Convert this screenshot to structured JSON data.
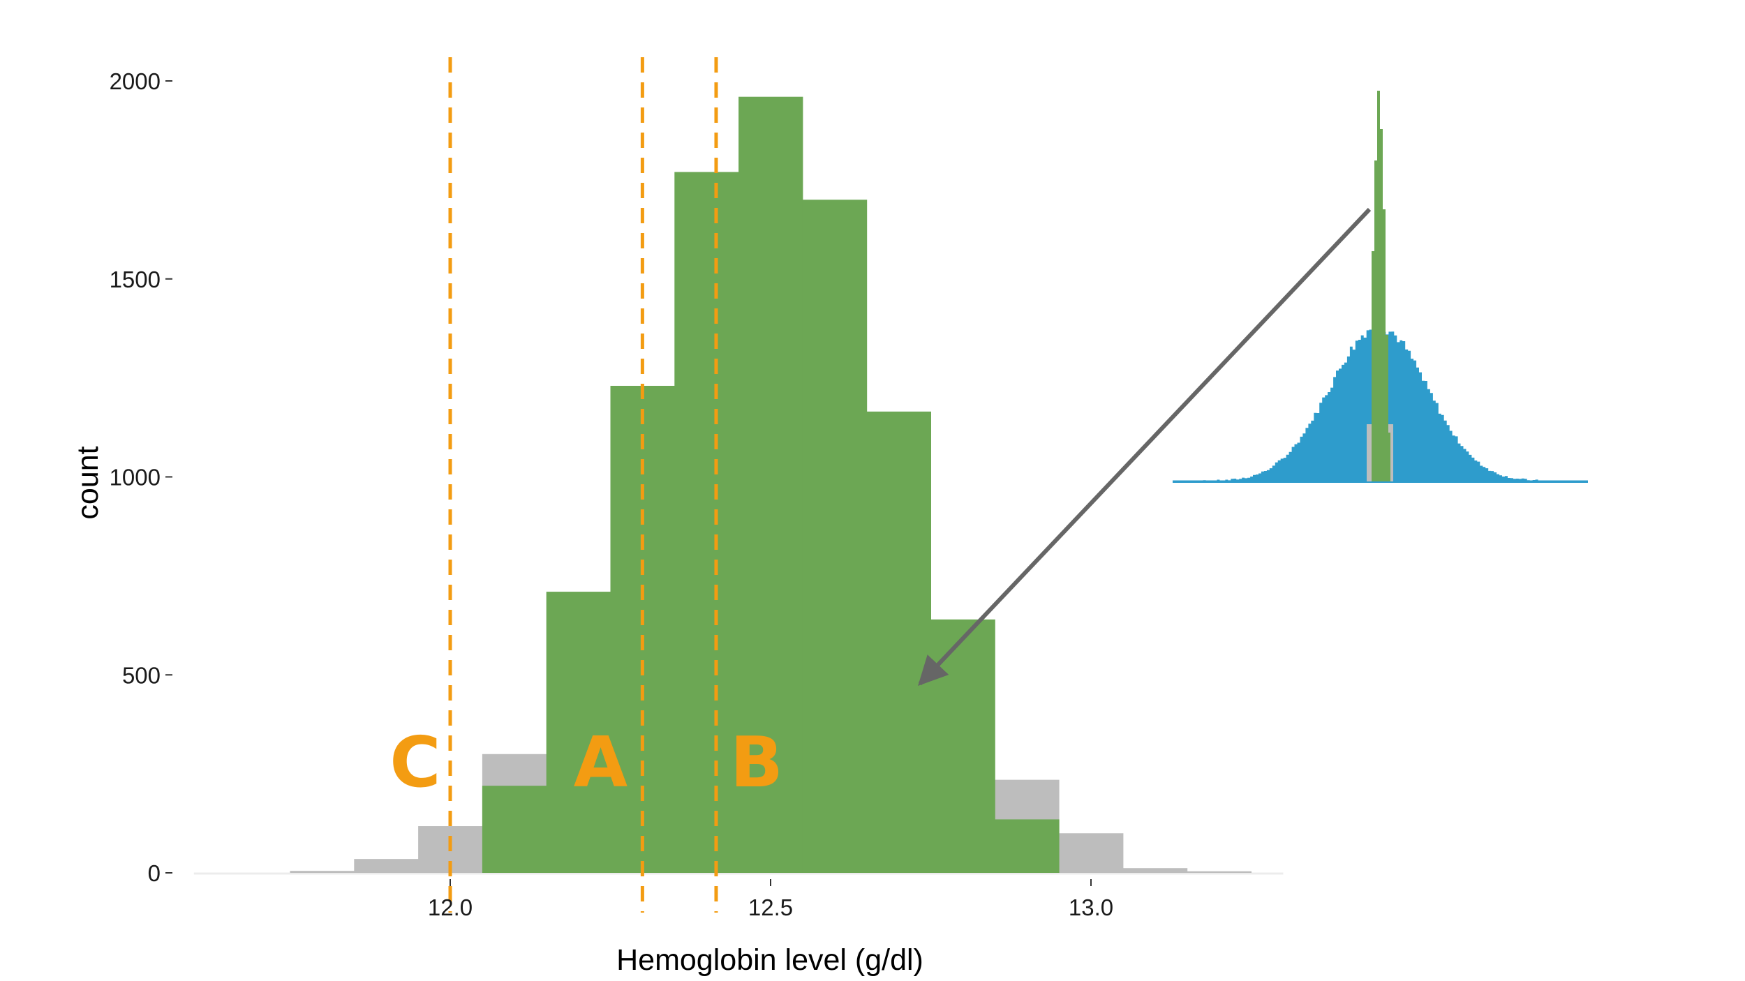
{
  "chart_data": {
    "type": "bar",
    "xlabel": "Hemoglobin level (g/dl)",
    "ylabel": "count",
    "xlim": [
      11.6,
      13.35
    ],
    "ylim": [
      0,
      2000
    ],
    "x_ticks": [
      {
        "value": 12.0,
        "label": "12.0"
      },
      {
        "value": 12.5,
        "label": "12.5"
      },
      {
        "value": 13.0,
        "label": "13.0"
      }
    ],
    "y_ticks": [
      {
        "value": 0,
        "label": "0"
      },
      {
        "value": 500,
        "label": "500"
      },
      {
        "value": 1000,
        "label": "1000"
      },
      {
        "value": 1500,
        "label": "1500"
      },
      {
        "value": 2000,
        "label": "2000"
      }
    ],
    "grid": false,
    "bin_width": 0.1,
    "series": [
      {
        "color": "#bdbdbd",
        "bins": [
          {
            "x0": 11.75,
            "x1": 11.85,
            "value": 5
          },
          {
            "x0": 11.85,
            "x1": 11.95,
            "value": 35
          },
          {
            "x0": 11.95,
            "x1": 12.05,
            "value": 118
          },
          {
            "x0": 12.05,
            "x1": 12.15,
            "value": 300
          },
          {
            "x0": 12.85,
            "x1": 12.95,
            "value": 235
          },
          {
            "x0": 12.95,
            "x1": 13.05,
            "value": 100
          },
          {
            "x0": 13.05,
            "x1": 13.15,
            "value": 12
          },
          {
            "x0": 13.15,
            "x1": 13.25,
            "value": 4
          }
        ]
      },
      {
        "color": "#6ca754",
        "bins": [
          {
            "x0": 12.05,
            "x1": 12.15,
            "value": 220
          },
          {
            "x0": 12.15,
            "x1": 12.25,
            "value": 710
          },
          {
            "x0": 12.25,
            "x1": 12.35,
            "value": 1230
          },
          {
            "x0": 12.35,
            "x1": 12.45,
            "value": 1770
          },
          {
            "x0": 12.45,
            "x1": 12.55,
            "value": 1960
          },
          {
            "x0": 12.55,
            "x1": 12.65,
            "value": 1700
          },
          {
            "x0": 12.65,
            "x1": 12.75,
            "value": 1165
          },
          {
            "x0": 12.75,
            "x1": 12.85,
            "value": 640
          },
          {
            "x0": 12.85,
            "x1": 12.95,
            "value": 135
          }
        ]
      }
    ],
    "reference_lines": [
      {
        "label": "C",
        "x": 12.0,
        "color": "#f39c12"
      },
      {
        "label": "A",
        "x": 12.3,
        "color": "#f39c12"
      },
      {
        "label": "B",
        "x": 12.415,
        "color": "#f39c12"
      }
    ],
    "inset": {
      "description_color_population": "#2e9ccc",
      "description_color_sample": "#6ca754",
      "arrow_color": "#666666"
    }
  }
}
